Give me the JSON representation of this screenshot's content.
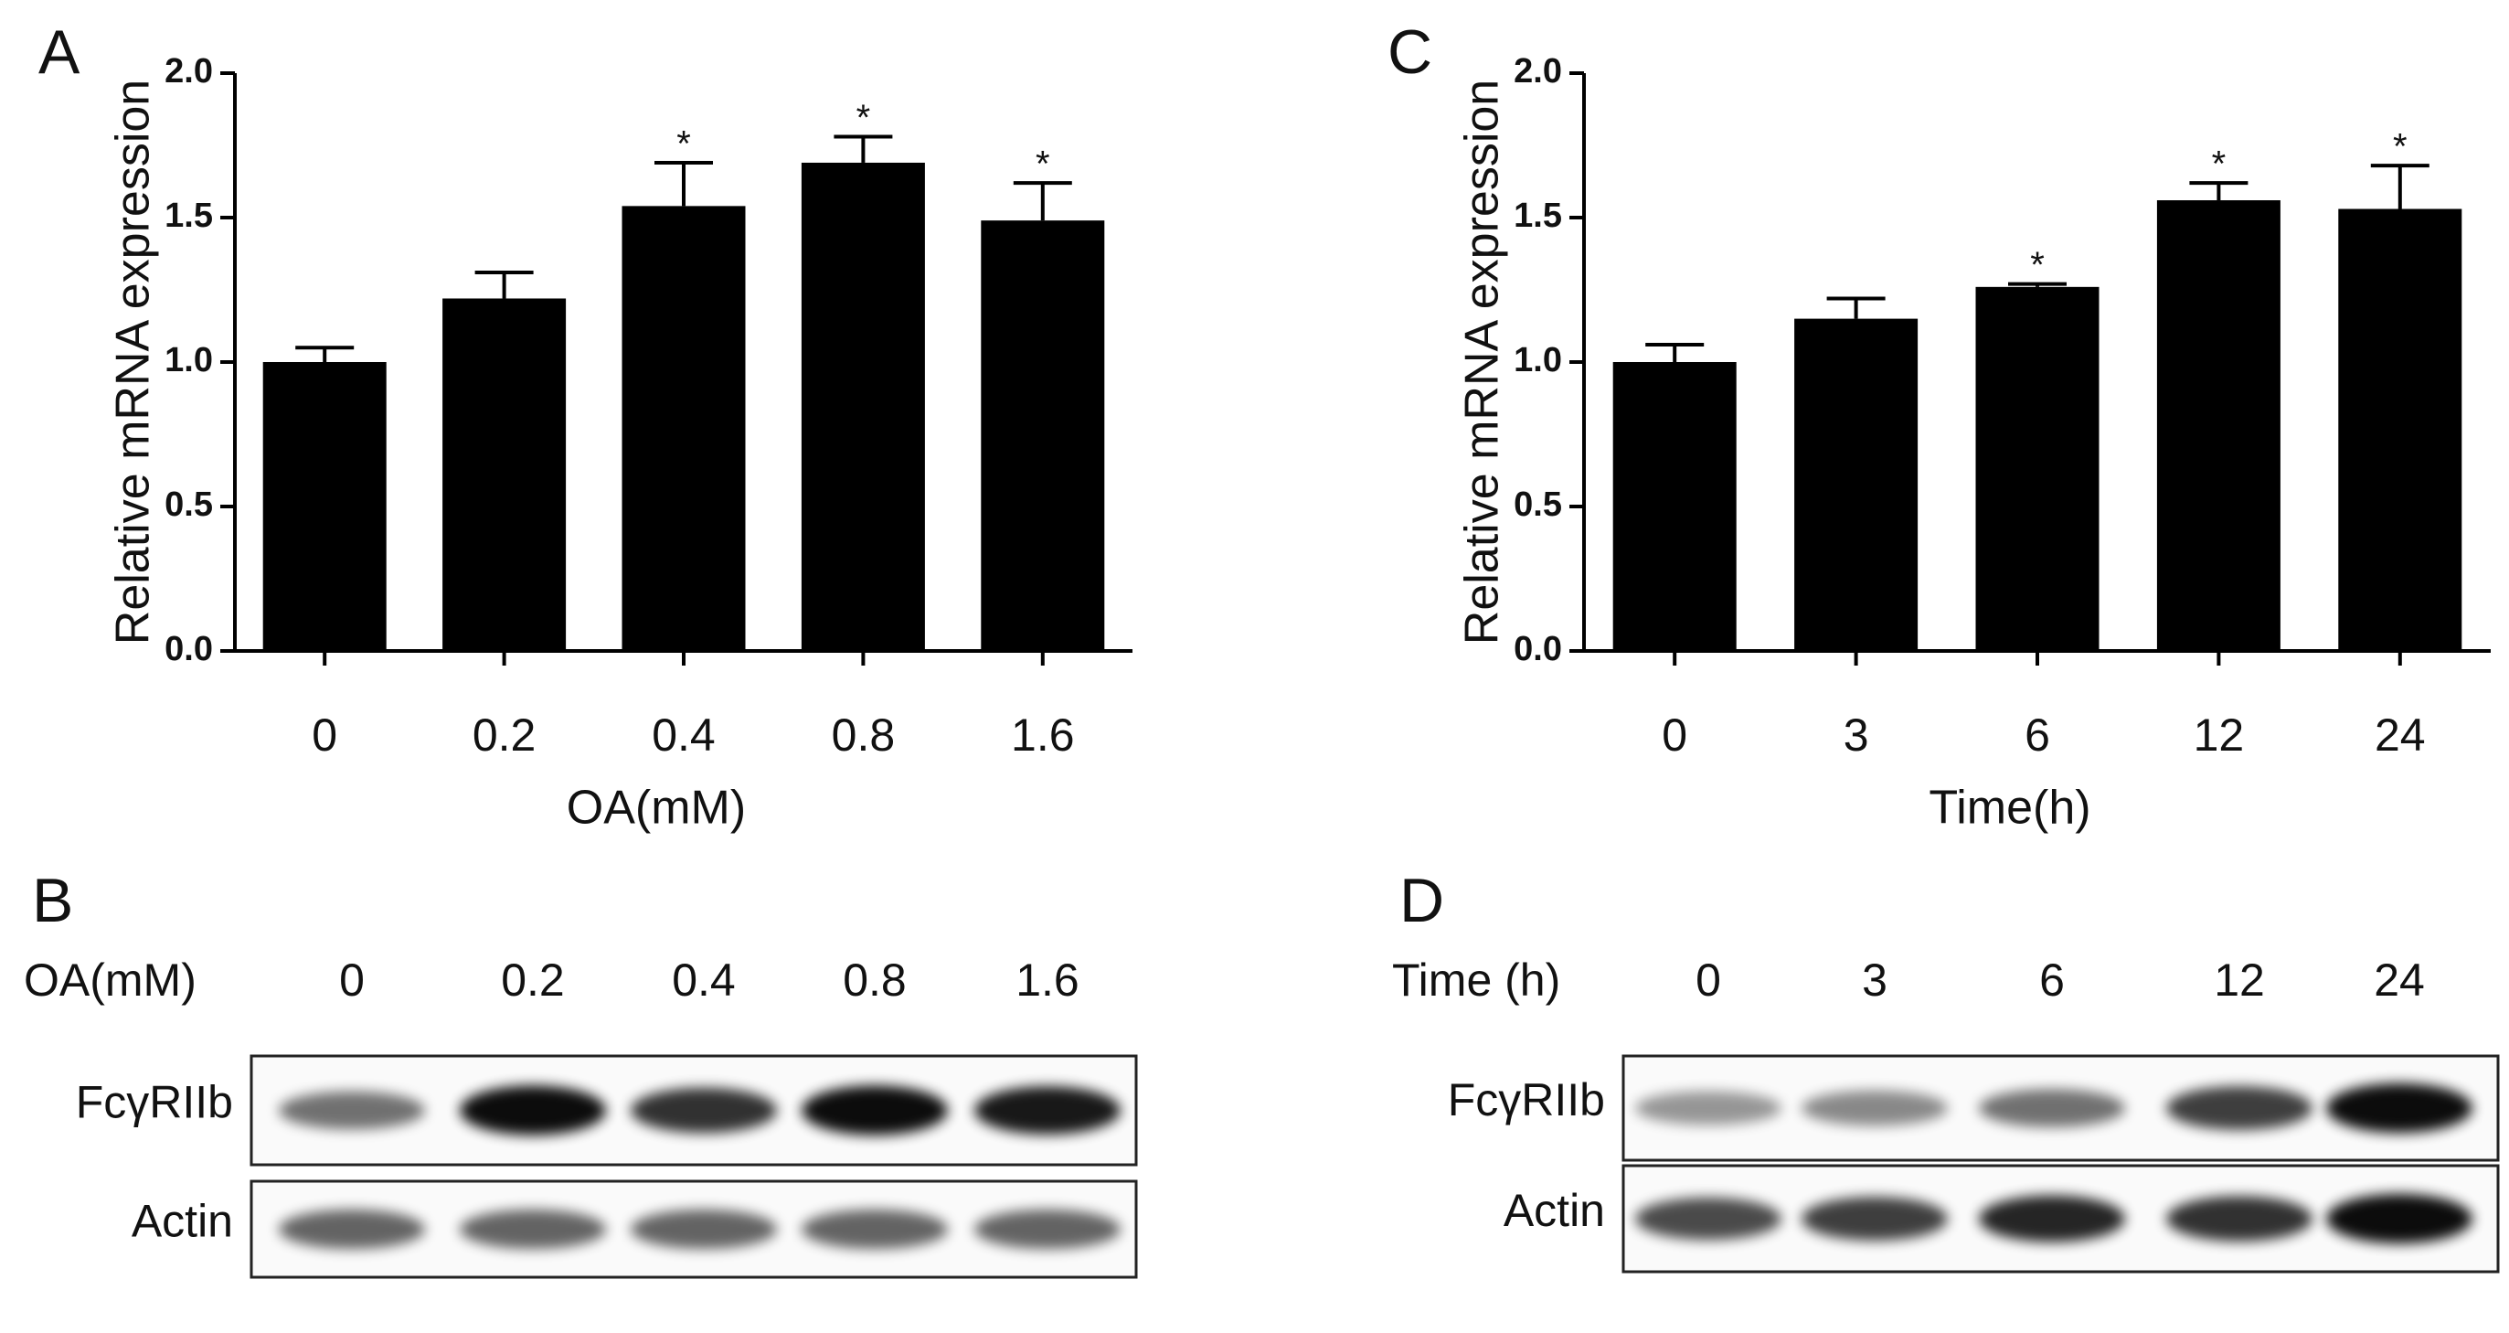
{
  "chart_data": [
    {
      "type": "bar",
      "panel": "A",
      "ylabel": "Relative mRNA expression",
      "xlabel": "OA(mM)",
      "categories": [
        "0",
        "0.2",
        "0.4",
        "0.8",
        "1.6"
      ],
      "values": [
        1.0,
        1.22,
        1.54,
        1.69,
        1.49
      ],
      "errors": [
        0.05,
        0.09,
        0.15,
        0.09,
        0.13
      ],
      "annotations": [
        null,
        null,
        "*",
        "*",
        "*"
      ],
      "color": "#000000",
      "ylim": [
        0,
        2.0
      ],
      "yticks": [
        {
          "value": 0,
          "label": "0.0"
        },
        0.5,
        {
          "value": 1,
          "label": "1.0"
        },
        1.5,
        {
          "value": 2,
          "label": "2.0"
        }
      ]
    },
    {
      "type": "bar",
      "panel": "C",
      "ylabel": "Relative mRNA expression",
      "xlabel": "Time(h)",
      "categories": [
        "0",
        "3",
        "6",
        "12",
        "24"
      ],
      "values": [
        1.0,
        1.15,
        1.26,
        1.56,
        1.53
      ],
      "errors": [
        0.06,
        0.07,
        0.01,
        0.06,
        0.15
      ],
      "annotations": [
        null,
        null,
        "*",
        "*",
        "*"
      ],
      "color": "#000000",
      "ylim": [
        0,
        2.0
      ],
      "yticks": [
        {
          "value": 0,
          "label": "0.0"
        },
        0.5,
        {
          "value": 1,
          "label": "1.0"
        },
        1.5,
        {
          "value": 2,
          "label": "2.0"
        }
      ]
    }
  ],
  "blots": [
    {
      "panel": "B",
      "header": "OA(mM)",
      "lanes": [
        "0",
        "0.2",
        "0.4",
        "0.8",
        "1.6"
      ],
      "rows": [
        "FcγRIIb",
        "Actin"
      ]
    },
    {
      "panel": "D",
      "header": "Time (h)",
      "lanes": [
        "0",
        "3",
        "6",
        "12",
        "24"
      ],
      "rows": [
        "FcγRIIb",
        "Actin"
      ]
    }
  ]
}
